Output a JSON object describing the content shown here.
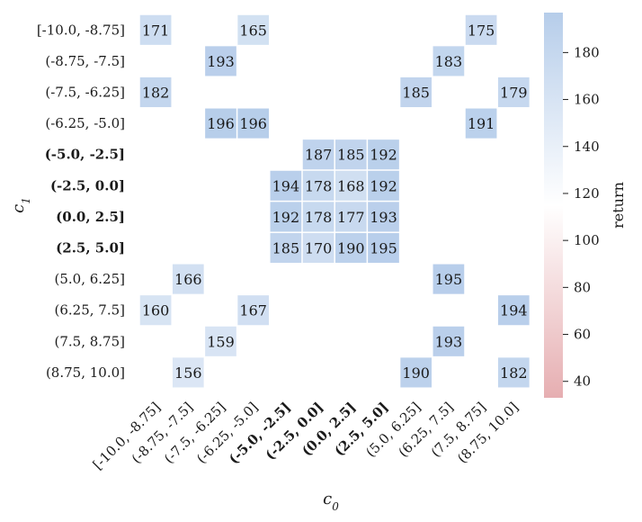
{
  "chart_data": {
    "type": "heatmap",
    "xlabel": "c_0",
    "ylabel": "c_1",
    "x_categories": [
      "[-10.0, -8.75]",
      "(-8.75, -7.5]",
      "(-7.5, -6.25]",
      "(-6.25, -5.0]",
      "(-5.0, -2.5]",
      "(-2.5, 0.0]",
      "(0.0, 2.5]",
      "(2.5, 5.0]",
      "(5.0, 6.25]",
      "(6.25, 7.5]",
      "(7.5, 8.75]",
      "(8.75, 10.0]"
    ],
    "y_categories": [
      "[-10.0, -8.75]",
      "(-8.75, -7.5]",
      "(-7.5, -6.25]",
      "(-6.25, -5.0]",
      "(-5.0, -2.5]",
      "(-2.5, 0.0]",
      "(0.0, 2.5]",
      "(2.5, 5.0]",
      "(5.0, 6.25]",
      "(6.25, 7.5]",
      "(7.5, 8.75]",
      "(8.75, 10.0]"
    ],
    "bold_x_indices": [
      4,
      5,
      6,
      7
    ],
    "bold_y_indices": [
      4,
      5,
      6,
      7
    ],
    "values": [
      [
        171,
        null,
        null,
        165,
        null,
        null,
        null,
        null,
        null,
        null,
        175,
        null
      ],
      [
        null,
        null,
        193,
        null,
        null,
        null,
        null,
        null,
        null,
        183,
        null,
        null
      ],
      [
        182,
        null,
        null,
        null,
        null,
        null,
        null,
        null,
        185,
        null,
        null,
        179
      ],
      [
        null,
        null,
        196,
        196,
        null,
        null,
        null,
        null,
        null,
        null,
        191,
        null
      ],
      [
        null,
        null,
        null,
        null,
        null,
        187,
        185,
        192,
        null,
        null,
        null,
        null
      ],
      [
        null,
        null,
        null,
        null,
        194,
        178,
        168,
        192,
        null,
        null,
        null,
        null
      ],
      [
        null,
        null,
        null,
        null,
        192,
        178,
        177,
        193,
        null,
        null,
        null,
        null
      ],
      [
        null,
        null,
        null,
        null,
        185,
        170,
        190,
        195,
        null,
        null,
        null,
        null
      ],
      [
        null,
        166,
        null,
        null,
        null,
        null,
        null,
        null,
        null,
        195,
        null,
        null
      ],
      [
        160,
        null,
        null,
        167,
        null,
        null,
        null,
        null,
        null,
        null,
        null,
        194
      ],
      [
        null,
        null,
        159,
        null,
        null,
        null,
        null,
        null,
        null,
        193,
        null,
        null
      ],
      [
        null,
        156,
        null,
        null,
        null,
        null,
        null,
        null,
        190,
        null,
        null,
        182
      ]
    ],
    "colorbar": {
      "label": "return",
      "range": [
        33,
        197
      ],
      "center": 115,
      "ticks": [
        40,
        60,
        80,
        100,
        120,
        140,
        160,
        180
      ],
      "colors": {
        "low": "#e6aeb1",
        "mid": "#ffffff",
        "high": "#b6cdea"
      }
    }
  }
}
